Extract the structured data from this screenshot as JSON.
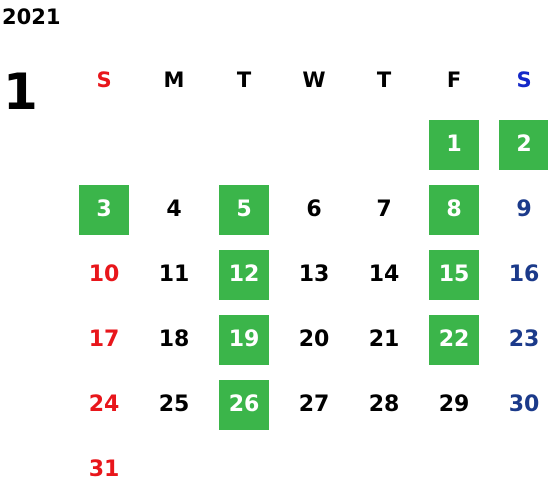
{
  "year": "2021",
  "month": "1",
  "colors": {
    "sunday": "#e8161b",
    "saturday_header": "#1428c8",
    "saturday": "#1b3a8a",
    "weekday": "#000000",
    "highlight_bg": "#3bb54a",
    "highlight_text": "#ffffff"
  },
  "weekdays": [
    "S",
    "M",
    "T",
    "W",
    "T",
    "F",
    "S"
  ],
  "start_offset": 5,
  "days": [
    "1",
    "2",
    "3",
    "4",
    "5",
    "6",
    "7",
    "8",
    "9",
    "10",
    "11",
    "12",
    "13",
    "14",
    "15",
    "16",
    "17",
    "18",
    "19",
    "20",
    "21",
    "22",
    "23",
    "24",
    "25",
    "26",
    "27",
    "28",
    "29",
    "30",
    "31"
  ],
  "highlighted_days": [
    "1",
    "2",
    "3",
    "5",
    "8",
    "12",
    "15",
    "19",
    "22",
    "26"
  ]
}
